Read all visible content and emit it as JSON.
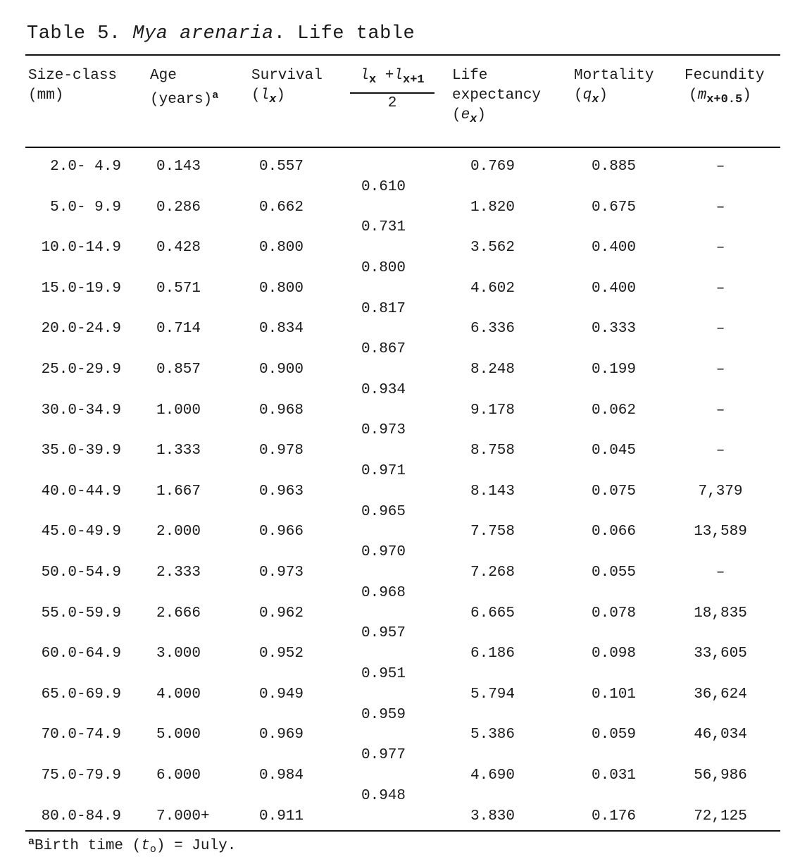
{
  "table": {
    "title_prefix": "Table 5.",
    "title_species": "Mya arenaria",
    "title_suffix": ". Life table",
    "headers": {
      "size_line1": "Size-class",
      "size_line2": "(mm)",
      "age_line1": "Age",
      "age_line2": "(years)",
      "age_footnote": "a",
      "survival_line1": "Survival",
      "survival_sym": "l",
      "survival_sub": "x",
      "mean_l1": "l",
      "mean_sub1": "x",
      "mean_plus": " +",
      "mean_l2": "l",
      "mean_sub2": "x+1",
      "mean_den": "2",
      "life_line1": "Life",
      "life_line2": "expectancy",
      "life_sym": "e",
      "life_sub": "x",
      "mort_line1": "Mortality",
      "mort_sym": "q",
      "mort_sub": "x",
      "fec_line1": "Fecundity",
      "fec_sym": "m",
      "fec_sub": "x+0.5"
    },
    "rows": [
      {
        "size": "2.0- 4.9",
        "age": "0.143",
        "survival": "0.557",
        "life": "0.769",
        "mortality": "0.885",
        "fecundity": "–"
      },
      {
        "size": "5.0- 9.9",
        "age": "0.286",
        "survival": "0.662",
        "life": "1.820",
        "mortality": "0.675",
        "fecundity": "–"
      },
      {
        "size": "10.0-14.9",
        "age": "0.428",
        "survival": "0.800",
        "life": "3.562",
        "mortality": "0.400",
        "fecundity": "–"
      },
      {
        "size": "15.0-19.9",
        "age": "0.571",
        "survival": "0.800",
        "life": "4.602",
        "mortality": "0.400",
        "fecundity": "–"
      },
      {
        "size": "20.0-24.9",
        "age": "0.714",
        "survival": "0.834",
        "life": "6.336",
        "mortality": "0.333",
        "fecundity": "–"
      },
      {
        "size": "25.0-29.9",
        "age": "0.857",
        "survival": "0.900",
        "life": "8.248",
        "mortality": "0.199",
        "fecundity": "–"
      },
      {
        "size": "30.0-34.9",
        "age": "1.000",
        "survival": "0.968",
        "life": "9.178",
        "mortality": "0.062",
        "fecundity": "–"
      },
      {
        "size": "35.0-39.9",
        "age": "1.333",
        "survival": "0.978",
        "life": "8.758",
        "mortality": "0.045",
        "fecundity": "–"
      },
      {
        "size": "40.0-44.9",
        "age": "1.667",
        "survival": "0.963",
        "life": "8.143",
        "mortality": "0.075",
        "fecundity": "7,379"
      },
      {
        "size": "45.0-49.9",
        "age": "2.000",
        "survival": "0.966",
        "life": "7.758",
        "mortality": "0.066",
        "fecundity": "13,589"
      },
      {
        "size": "50.0-54.9",
        "age": "2.333",
        "survival": "0.973",
        "life": "7.268",
        "mortality": "0.055",
        "fecundity": "–"
      },
      {
        "size": "55.0-59.9",
        "age": "2.666",
        "survival": "0.962",
        "life": "6.665",
        "mortality": "0.078",
        "fecundity": "18,835"
      },
      {
        "size": "60.0-64.9",
        "age": "3.000",
        "survival": "0.952",
        "life": "6.186",
        "mortality": "0.098",
        "fecundity": "33,605"
      },
      {
        "size": "65.0-69.9",
        "age": "4.000",
        "survival": "0.949",
        "life": "5.794",
        "mortality": "0.101",
        "fecundity": "36,624"
      },
      {
        "size": "70.0-74.9",
        "age": "5.000",
        "survival": "0.969",
        "life": "5.386",
        "mortality": "0.059",
        "fecundity": "46,034"
      },
      {
        "size": "75.0-79.9",
        "age": "6.000",
        "survival": "0.984",
        "life": "4.690",
        "mortality": "0.031",
        "fecundity": "56,986"
      },
      {
        "size": "80.0-84.9",
        "age": "7.000+",
        "survival": "0.911",
        "life": "3.830",
        "mortality": "0.176",
        "fecundity": "72,125"
      }
    ],
    "means": [
      "0.610",
      "0.731",
      "0.800",
      "0.817",
      "0.867",
      "0.934",
      "0.973",
      "0.971",
      "0.965",
      "0.970",
      "0.968",
      "0.957",
      "0.951",
      "0.959",
      "0.977",
      "0.948"
    ],
    "footnote": {
      "marker": "a",
      "text_before": "Birth time (",
      "sym": "t",
      "sub": "o",
      "text_after": ") = July."
    }
  }
}
